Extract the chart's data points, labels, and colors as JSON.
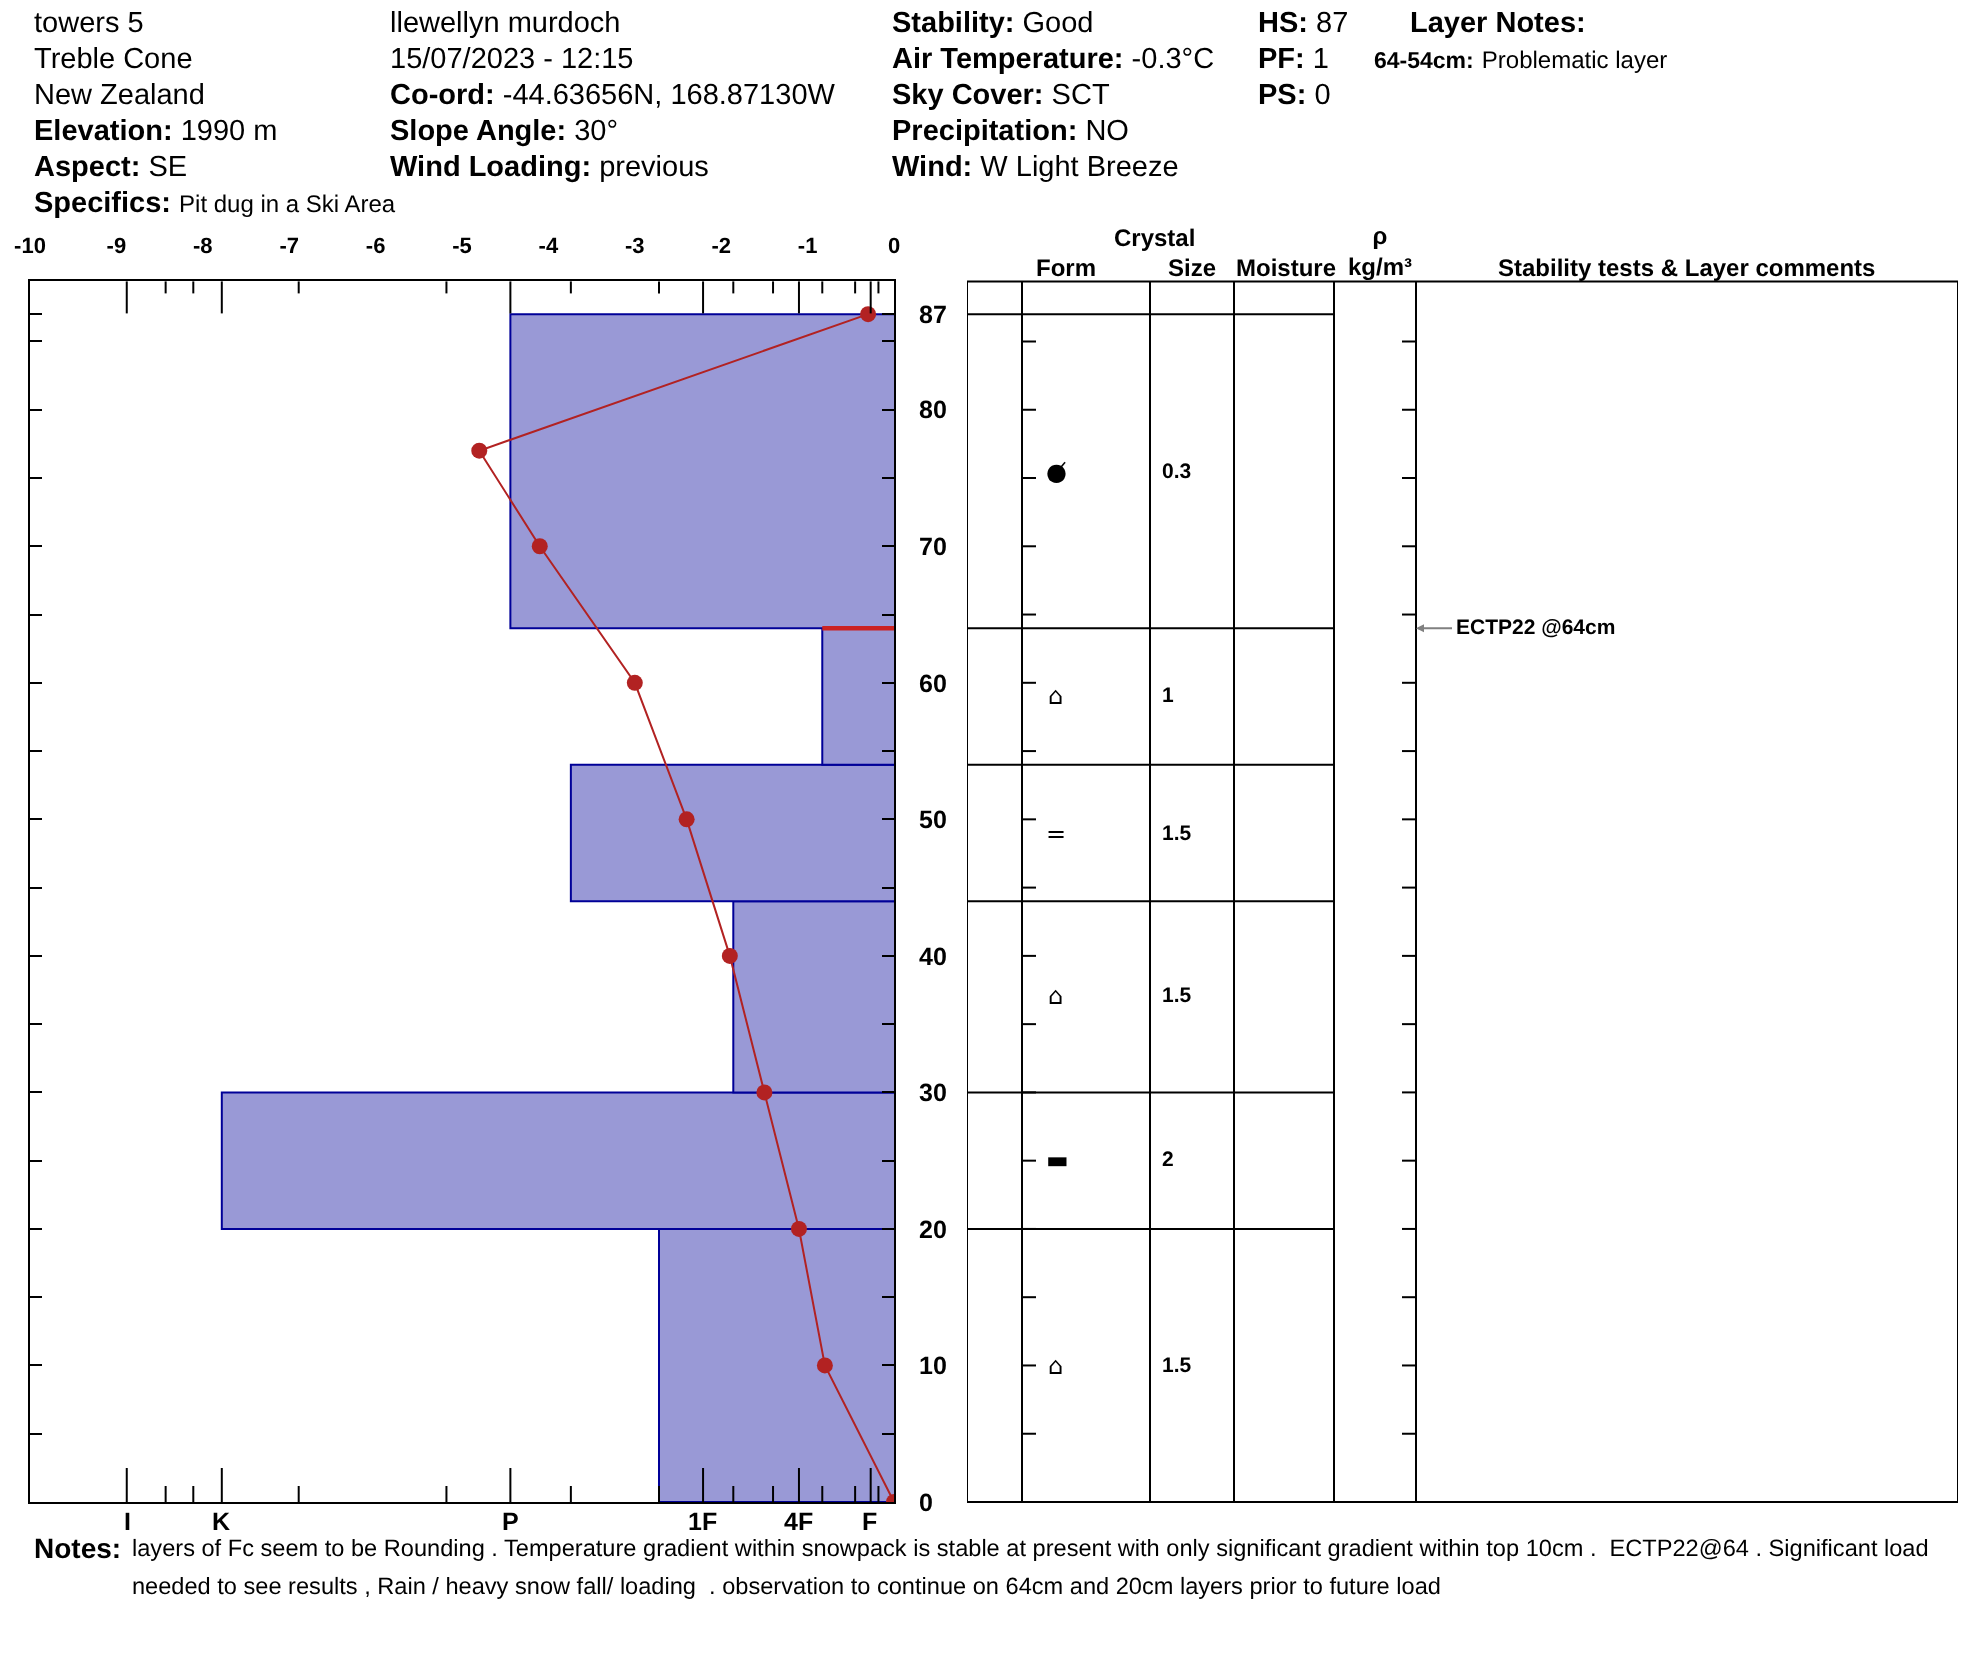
{
  "chart_data": [
    {
      "type": "other",
      "annotations": [
        "towers 5",
        "Treble Cone",
        "New Zealand",
        "Elevation:",
        "1990 m",
        "Aspect:",
        "SE",
        "Specifics:",
        "Pit dug in a Ski Area",
        "llewellyn murdoch",
        "15/07/2023 - 12:15",
        "Co-ord:",
        "-44.63656N, 168.87130W",
        "Slope Angle:",
        "30°",
        "Wind Loading:",
        "previous",
        "Stability:",
        "Good",
        "Air Temperature:",
        "-0.3°C",
        "Sky Cover:",
        "SCT",
        "Precipitation:",
        "NO",
        "Wind:",
        "W Light Breeze",
        "HS:",
        "87",
        "PF:",
        "1",
        "PS:",
        "0",
        "Layer Notes:",
        "64-54cm:",
        "Problematic layer"
      ]
    },
    {
      "type": "line",
      "xlim": [
        -10,
        0
      ],
      "xticks": [
        -10,
        -9,
        -8,
        -7,
        -6,
        -5,
        -4,
        -3,
        -2,
        -1,
        0,
        {
          "value": -8.88,
          "label": null
        },
        {
          "value": -8.43,
          "label": null
        },
        {
          "value": -8.11,
          "label": null
        },
        {
          "value": -7.78,
          "label": null
        },
        {
          "value": -6.89,
          "label": null
        },
        {
          "value": -5.18,
          "label": null
        },
        {
          "value": -4.44,
          "label": null
        },
        {
          "value": -3.74,
          "label": null
        },
        {
          "value": -2.72,
          "label": null
        },
        {
          "value": -2.21,
          "label": null
        },
        {
          "value": -1.86,
          "label": null
        },
        {
          "value": -1.4,
          "label": null
        },
        {
          "value": -1.1,
          "label": null
        },
        {
          "value": -0.83,
          "label": null
        },
        {
          "value": -0.45,
          "label": null
        },
        {
          "value": -0.27,
          "label": null
        },
        {
          "value": -0.18,
          "label": null
        }
      ],
      "ylim": [
        0,
        89.4
      ],
      "yticks": [
        0,
        {
          "value": 5,
          "label": null
        },
        10,
        {
          "value": 15,
          "label": null
        },
        20,
        {
          "value": 25,
          "label": null
        },
        30,
        {
          "value": 35,
          "label": null
        },
        40,
        {
          "value": 45,
          "label": null
        },
        50,
        {
          "value": 55,
          "label": null
        },
        60,
        {
          "value": 65,
          "label": null
        },
        70,
        {
          "value": 75,
          "label": null
        },
        80,
        {
          "value": 85,
          "label": null
        },
        87
      ],
      "annotations": [
        "I",
        "K",
        "P",
        "1F",
        "4F",
        "F"
      ],
      "series": [
        {
          "type": "area",
          "color": "#9999d6",
          "x": [
            0,
            -2.72,
            -2.72,
            0
          ],
          "values": [
            0,
            0,
            20,
            20
          ]
        },
        {
          "type": "area",
          "color": "#9999d6",
          "x": [
            0,
            -7.78,
            -7.78,
            0
          ],
          "values": [
            20,
            20,
            30,
            30
          ]
        },
        {
          "type": "area",
          "color": "#9999d6",
          "x": [
            0,
            -1.86,
            -1.86,
            0
          ],
          "values": [
            30,
            30,
            44,
            44
          ]
        },
        {
          "type": "area",
          "color": "#9999d6",
          "x": [
            0,
            -3.74,
            -3.74,
            0
          ],
          "values": [
            44,
            44,
            54,
            54
          ]
        },
        {
          "type": "area",
          "color": "#9999d6",
          "x": [
            0,
            -0.83,
            -0.83,
            0
          ],
          "values": [
            54,
            54,
            64,
            64
          ]
        },
        {
          "type": "area",
          "color": "#9999d6",
          "x": [
            0,
            -4.44,
            -4.44,
            0
          ],
          "values": [
            64,
            64,
            87,
            87
          ]
        },
        {
          "type": "line",
          "color": "#cc2222",
          "marker": "none",
          "x": [
            -0.83,
            0
          ],
          "values": [
            64,
            64
          ]
        },
        {
          "type": "line",
          "color": "#b22222",
          "marker": "circle",
          "x": [
            -0.3,
            -4.8,
            -4.1,
            -3.0,
            -2.4,
            -1.9,
            -1.5,
            -1.1,
            -0.8,
            0
          ],
          "values": [
            87,
            77,
            70,
            60,
            50,
            40,
            30,
            20,
            10,
            0
          ]
        }
      ]
    },
    {
      "type": "other",
      "categories": [
        null,
        "Form",
        "Size",
        "Moisture",
        "ρ\nkg/m³",
        "Stability tests & Layer comments"
      ],
      "cell_labels": [
        [
          null,
          "●̸",
          "0.3",
          null,
          null,
          null
        ],
        [
          null,
          "⌂",
          "1",
          null,
          null,
          "ECTP22 @64cm"
        ],
        [
          null,
          "=",
          "1.5",
          null,
          null,
          null
        ],
        [
          null,
          "⌂",
          "1.5",
          null,
          null,
          null
        ],
        [
          null,
          "▬",
          "2",
          null,
          null,
          null
        ],
        [
          null,
          "⌂",
          "1.5",
          null,
          null,
          null
        ]
      ],
      "annotations": [
        "Crystal"
      ]
    },
    {
      "type": "other",
      "annotations": [
        "Notes:",
        "layers of Fc seem to be Rounding . Temperature gradient within snowpack is stable at present with only significant gradient within top 10cm .  ECTP22@64 . Significant load needed to see results , Rain / heavy snow fall/ loading  . observation to continue on 64cm and 20cm layers prior to future load"
      ]
    }
  ]
}
